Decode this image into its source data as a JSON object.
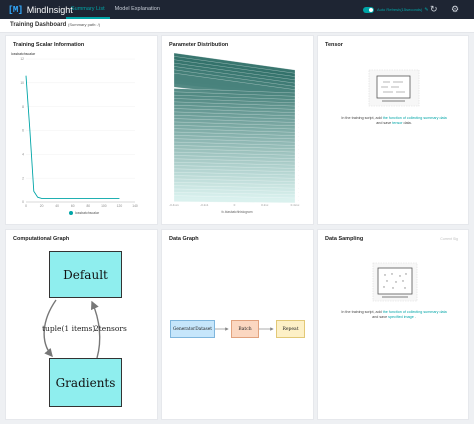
{
  "app": {
    "logo_mark": "[M]",
    "name": "MindInsight"
  },
  "nav": {
    "tabs": [
      {
        "label": "Summary List",
        "active": true
      },
      {
        "label": "Model Explanation",
        "active": false
      }
    ]
  },
  "toolbar": {
    "auto_refresh_label": "Auto Refresh(15seconds)",
    "refresh_icon": "refresh-icon",
    "settings_icon": "gear-icon"
  },
  "dashboard": {
    "title": "Training Dashboard",
    "summary_path": "(Summary path: /)"
  },
  "cards": {
    "scalar": {
      "title": "Training Scalar Information",
      "tag": "lossbatchscalar",
      "legend": "lossbatchscalar",
      "y_ticks": [
        "12",
        "10",
        "8",
        "6",
        "4",
        "2",
        "0"
      ],
      "x_ticks": [
        "0",
        "20",
        "40",
        "60",
        "80",
        "100",
        "120",
        "140"
      ]
    },
    "param": {
      "title": "Parameter Distribution",
      "footer": "fc.biasbatchhistogram",
      "x_ticks": [
        "-0.4xxx",
        "-0.2x1",
        "0",
        "0.2xx",
        "0.4xxx"
      ]
    },
    "tensor": {
      "title": "Tensor",
      "text_before_link": "In the training script, add",
      "link_text": "the function of collecting summary data",
      "text_and": "and save",
      "link_text_2": "tensor",
      "text_end": "data."
    },
    "graph": {
      "title": "Computational Graph",
      "node_default": "Default",
      "node_gradients": "Gradients",
      "edge_left": "tuple(1 items)",
      "edge_right": "2tensors"
    },
    "data_graph": {
      "title": "Data Graph",
      "nodes": [
        "GeneratorDataset",
        "Batch",
        "Repeat"
      ]
    },
    "sampling": {
      "title": "Data Sampling",
      "corner": "Current Sig",
      "text_before_link": "In the training script, add",
      "link_text": "the function of collecting summary data",
      "text_and": "and save",
      "link_text_2": "specified image",
      "text_end": "."
    }
  },
  "chart_data": {
    "type": "line",
    "title": "",
    "xlabel": "",
    "ylabel": "",
    "xlim": [
      0,
      140
    ],
    "ylim": [
      0,
      12
    ],
    "grid": true,
    "legend_placement": "bottom",
    "series": [
      {
        "name": "lossbatchscalar",
        "color": "#00a5a7",
        "x": [
          0,
          5,
          10,
          15,
          20,
          25,
          30,
          40,
          50,
          60,
          80,
          100,
          120
        ],
        "y": [
          10.6,
          6.0,
          0.9,
          0.4,
          0.3,
          0.3,
          0.3,
          0.3,
          0.3,
          0.3,
          0.3,
          0.3,
          0.3
        ]
      }
    ]
  },
  "colors": {
    "accent": "#00a5a7",
    "topbar": "#1e2533",
    "histogram_dark": "#2f6f68",
    "histogram_light": "#d9f1ee",
    "node_fill_graph": "#8feeee",
    "node_blue": "#c6e6fb",
    "node_orange": "#fbd7c1",
    "node_yellow": "#fdf0c6"
  }
}
